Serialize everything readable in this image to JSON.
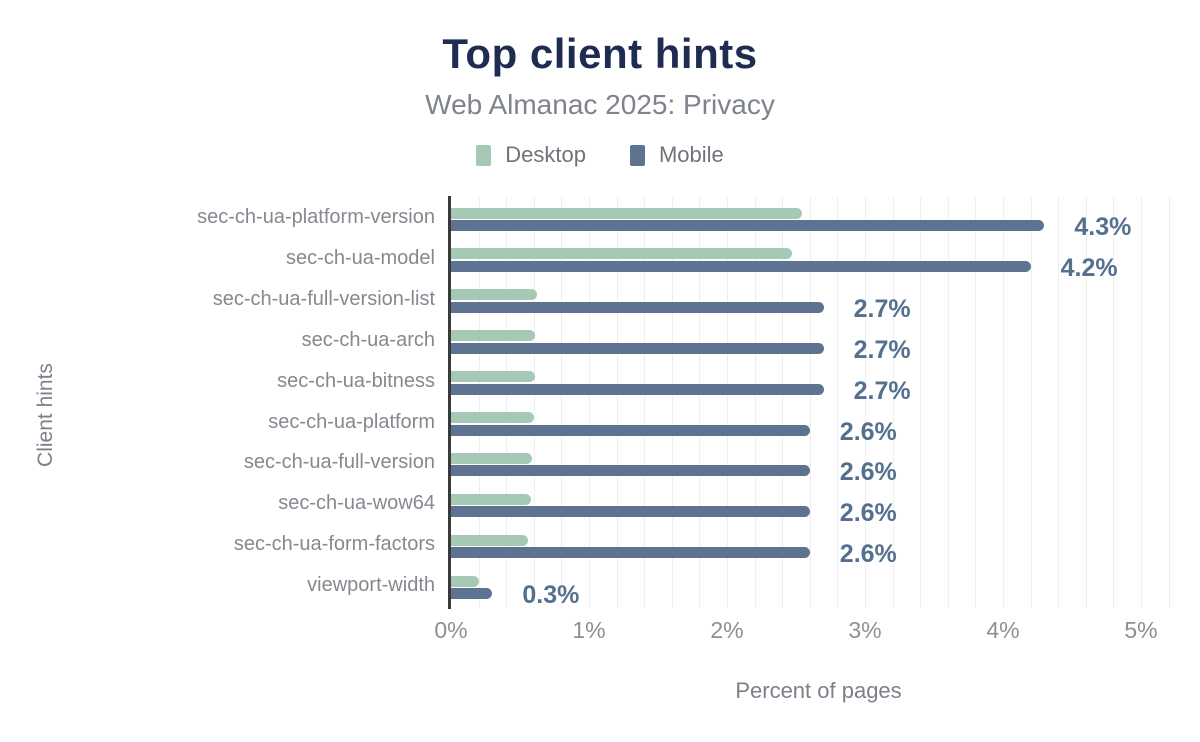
{
  "header": {
    "title": "Top client hints",
    "subtitle": "Web Almanac 2025: Privacy"
  },
  "legend": [
    {
      "label": "Desktop",
      "color": "#a6c9b5"
    },
    {
      "label": "Mobile",
      "color": "#5d7391"
    }
  ],
  "chart_data": {
    "type": "bar",
    "orientation": "horizontal",
    "title": "Top client hints",
    "subtitle": "Web Almanac 2025: Privacy",
    "xlabel": "Percent of pages",
    "ylabel": "Client hints",
    "xlim": [
      0,
      5.3
    ],
    "x_ticks": [
      "0%",
      "1%",
      "2%",
      "3%",
      "4%",
      "5%"
    ],
    "grid": "vertical minor gridlines every 0.2%",
    "legend_position": "top",
    "categories": [
      "sec-ch-ua-platform-version",
      "sec-ch-ua-model",
      "sec-ch-ua-full-version-list",
      "sec-ch-ua-arch",
      "sec-ch-ua-bitness",
      "sec-ch-ua-platform",
      "sec-ch-ua-full-version",
      "sec-ch-ua-wow64",
      "sec-ch-ua-form-factors",
      "viewport-width"
    ],
    "series": [
      {
        "name": "Desktop",
        "color": "#a6c9b5",
        "values_estimated_from_bar_lengths": true,
        "values": [
          2.54,
          2.47,
          0.62,
          0.61,
          0.61,
          0.6,
          0.59,
          0.58,
          0.56,
          0.2
        ]
      },
      {
        "name": "Mobile",
        "color": "#5d7391",
        "values": [
          4.3,
          4.2,
          2.7,
          2.7,
          2.7,
          2.6,
          2.6,
          2.6,
          2.6,
          0.3
        ],
        "data_labels": [
          "4.3%",
          "4.2%",
          "2.7%",
          "2.7%",
          "2.7%",
          "2.6%",
          "2.6%",
          "2.6%",
          "2.6%",
          "0.3%"
        ]
      }
    ],
    "data_label_color": "#54708e"
  }
}
